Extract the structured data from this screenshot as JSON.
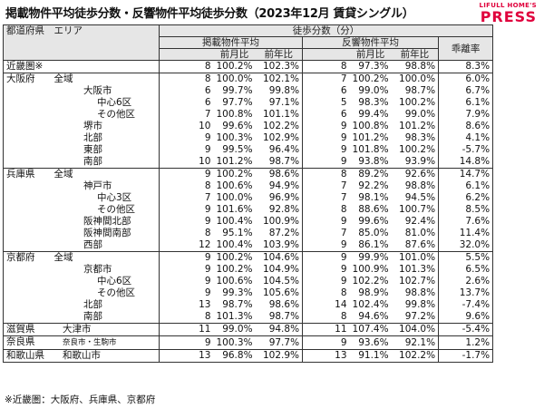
{
  "title": "掲載物件平均徒歩分数・反響物件平均徒歩分数（2023年12月 賃貸シングル）",
  "logo": {
    "top": "LIFULL HOME'S",
    "bottom": "PRESS"
  },
  "header": {
    "region": "都道府県　エリア",
    "walk_minutes": "徒歩分数（分）",
    "listed": "掲載物件平均",
    "response": "反響物件平均",
    "gap": "乖離率",
    "mom": "前月比",
    "yoy": "前年比"
  },
  "rows": [
    {
      "name": "近畿圏※",
      "level": 0,
      "l": "8",
      "lm": "100.2%",
      "ly": "102.3%",
      "r": "8",
      "rm": "97.3%",
      "ry": "98.8%",
      "g": "8.3%",
      "grp": true
    },
    {
      "name": "大阪府　　全域",
      "level": 0,
      "l": "8",
      "lm": "100.0%",
      "ly": "102.1%",
      "r": "7",
      "rm": "100.2%",
      "ry": "100.0%",
      "g": "6.0%",
      "grp": true
    },
    {
      "name": "大阪市",
      "level": 1,
      "l": "6",
      "lm": "99.7%",
      "ly": "99.8%",
      "r": "6",
      "rm": "99.0%",
      "ry": "98.7%",
      "g": "6.7%"
    },
    {
      "name": "中心6区",
      "level": 2,
      "l": "6",
      "lm": "97.7%",
      "ly": "97.1%",
      "r": "5",
      "rm": "98.3%",
      "ry": "100.2%",
      "g": "6.1%"
    },
    {
      "name": "その他区",
      "level": 2,
      "l": "7",
      "lm": "100.8%",
      "ly": "101.1%",
      "r": "6",
      "rm": "99.4%",
      "ry": "99.0%",
      "g": "7.9%"
    },
    {
      "name": "堺市",
      "level": 1,
      "l": "10",
      "lm": "99.6%",
      "ly": "102.2%",
      "r": "9",
      "rm": "100.8%",
      "ry": "101.2%",
      "g": "8.6%"
    },
    {
      "name": "北部",
      "level": 1,
      "l": "9",
      "lm": "100.3%",
      "ly": "102.9%",
      "r": "9",
      "rm": "101.2%",
      "ry": "98.3%",
      "g": "4.1%"
    },
    {
      "name": "東部",
      "level": 1,
      "l": "9",
      "lm": "99.5%",
      "ly": "96.4%",
      "r": "9",
      "rm": "101.8%",
      "ry": "100.2%",
      "g": "-5.7%"
    },
    {
      "name": "南部",
      "level": 1,
      "l": "10",
      "lm": "101.2%",
      "ly": "98.7%",
      "r": "9",
      "rm": "93.8%",
      "ry": "93.9%",
      "g": "14.8%"
    },
    {
      "name": "兵庫県　　全域",
      "level": 0,
      "l": "9",
      "lm": "100.2%",
      "ly": "98.6%",
      "r": "8",
      "rm": "89.2%",
      "ry": "92.6%",
      "g": "14.7%",
      "grp": true
    },
    {
      "name": "神戸市",
      "level": 1,
      "l": "8",
      "lm": "100.6%",
      "ly": "94.9%",
      "r": "7",
      "rm": "92.2%",
      "ry": "98.8%",
      "g": "6.1%"
    },
    {
      "name": "中心3区",
      "level": 2,
      "l": "7",
      "lm": "100.0%",
      "ly": "96.9%",
      "r": "7",
      "rm": "98.1%",
      "ry": "94.5%",
      "g": "6.2%"
    },
    {
      "name": "その他区",
      "level": 2,
      "l": "9",
      "lm": "101.6%",
      "ly": "92.8%",
      "r": "8",
      "rm": "88.6%",
      "ry": "100.7%",
      "g": "8.5%"
    },
    {
      "name": "阪神間北部",
      "level": 1,
      "l": "9",
      "lm": "100.4%",
      "ly": "100.9%",
      "r": "9",
      "rm": "99.6%",
      "ry": "92.4%",
      "g": "7.6%"
    },
    {
      "name": "阪神間南部",
      "level": 1,
      "l": "8",
      "lm": "95.1%",
      "ly": "87.2%",
      "r": "7",
      "rm": "85.0%",
      "ry": "81.0%",
      "g": "11.4%"
    },
    {
      "name": "西部",
      "level": 1,
      "l": "12",
      "lm": "100.4%",
      "ly": "103.9%",
      "r": "9",
      "rm": "86.1%",
      "ry": "87.6%",
      "g": "32.0%"
    },
    {
      "name": "京都府　　全域",
      "level": 0,
      "l": "9",
      "lm": "100.2%",
      "ly": "104.6%",
      "r": "9",
      "rm": "99.9%",
      "ry": "101.0%",
      "g": "5.5%",
      "grp": true
    },
    {
      "name": "京都市",
      "level": 1,
      "l": "9",
      "lm": "100.2%",
      "ly": "104.9%",
      "r": "9",
      "rm": "100.9%",
      "ry": "101.3%",
      "g": "6.5%"
    },
    {
      "name": "中心6区",
      "level": 2,
      "l": "9",
      "lm": "100.6%",
      "ly": "104.5%",
      "r": "9",
      "rm": "102.2%",
      "ry": "102.7%",
      "g": "2.6%"
    },
    {
      "name": "その他区",
      "level": 2,
      "l": "9",
      "lm": "99.3%",
      "ly": "105.6%",
      "r": "8",
      "rm": "98.9%",
      "ry": "98.8%",
      "g": "13.7%"
    },
    {
      "name": "北部",
      "level": 1,
      "l": "13",
      "lm": "98.7%",
      "ly": "98.6%",
      "r": "14",
      "rm": "102.4%",
      "ry": "99.8%",
      "g": "-7.4%"
    },
    {
      "name": "南部",
      "level": 1,
      "l": "8",
      "lm": "101.3%",
      "ly": "98.7%",
      "r": "8",
      "rm": "94.6%",
      "ry": "97.2%",
      "g": "9.6%"
    },
    {
      "name": "滋賀県",
      "sub": "大津市",
      "level": 0,
      "l": "11",
      "lm": "99.0%",
      "ly": "94.8%",
      "r": "11",
      "rm": "107.4%",
      "ry": "104.0%",
      "g": "-5.4%",
      "grp": true
    },
    {
      "name": "奈良県",
      "sub": "奈良市・生駒市",
      "subsmall": true,
      "level": 0,
      "l": "9",
      "lm": "100.3%",
      "ly": "97.7%",
      "r": "9",
      "rm": "93.6%",
      "ry": "92.1%",
      "g": "1.2%",
      "grp": true
    },
    {
      "name": "和歌山県",
      "sub": "和歌山市",
      "level": 0,
      "l": "13",
      "lm": "96.8%",
      "ly": "102.9%",
      "r": "13",
      "rm": "91.1%",
      "ry": "102.2%",
      "g": "-1.7%",
      "grp": true
    }
  ],
  "note": "※近畿圏：大阪府、兵庫県、京都府"
}
